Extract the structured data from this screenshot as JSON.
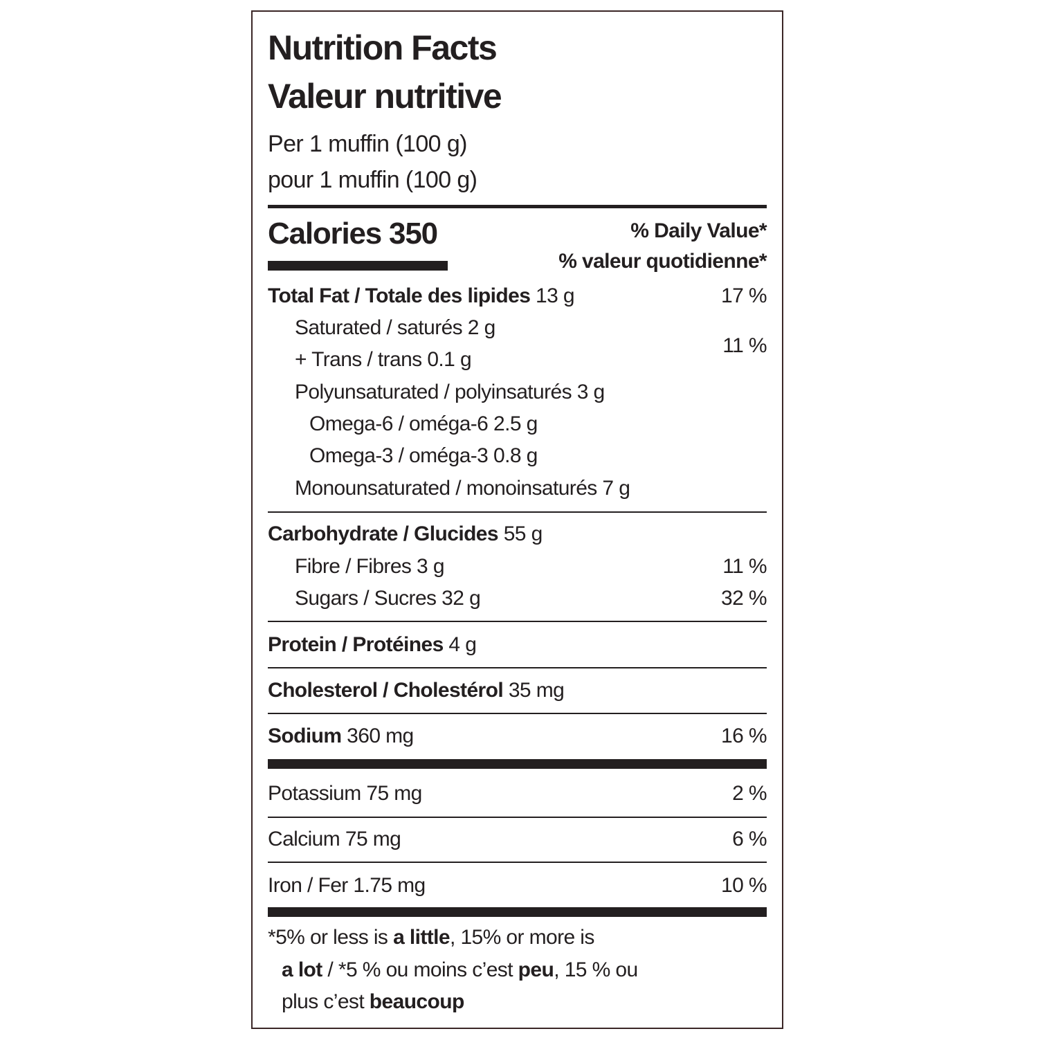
{
  "header": {
    "title_en": "Nutrition Facts",
    "title_fr": "Valeur nutritive",
    "serving_en": "Per 1 muffin (100 g)",
    "serving_fr": "pour 1 muffin (100 g)"
  },
  "calories": {
    "label": "Calories 350",
    "daily_value_en": "% Daily Value*",
    "daily_value_fr": "% valeur quotidienne*"
  },
  "fat": {
    "name": "Total Fat / Totale des lipides",
    "amount": "13 g",
    "dv": "17 %",
    "saturated_trans": {
      "lines": [
        "Saturated / saturés 2 g",
        "+ Trans / trans 0.1 g"
      ],
      "dv": "11 %"
    },
    "polyunsaturated": {
      "text": "Polyunsaturated / polyinsaturés 3 g",
      "omega6": "Omega-6 / oméga-6 2.5 g",
      "omega3": "Omega-3 / oméga-3 0.8 g"
    },
    "monounsaturated": "Monounsaturated / monoinsaturés 7 g"
  },
  "carbohydrate": {
    "name": "Carbohydrate / Glucides",
    "amount": "55 g",
    "fibre": {
      "text": "Fibre / Fibres 3 g",
      "dv": "11 %"
    },
    "sugars": {
      "text": "Sugars / Sucres 32 g",
      "dv": "32 %"
    }
  },
  "protein": {
    "name": "Protein / Protéines",
    "amount": "4 g"
  },
  "cholesterol": {
    "name": "Cholesterol / Cholestérol",
    "amount": "35 mg"
  },
  "sodium": {
    "name": "Sodium",
    "amount": "360 mg",
    "dv": "16 %"
  },
  "minerals": [
    {
      "text": "Potassium 75 mg",
      "dv": "2 %"
    },
    {
      "text": "Calcium 75 mg",
      "dv": "6 %"
    },
    {
      "text": "Iron / Fer 1.75 mg",
      "dv": "10 %"
    }
  ],
  "footnote": {
    "lines": [
      [
        {
          "text": "*5% or less is "
        },
        {
          "text": "a little",
          "bold": true
        },
        {
          "text": ", 15% or more is"
        }
      ],
      [
        {
          "text": "a lot",
          "bold": true
        },
        {
          "text": " / *5 % ou moins c’est "
        },
        {
          "text": "peu",
          "bold": true
        },
        {
          "text": ", 15 % ou"
        }
      ],
      [
        {
          "text": "plus c’est "
        },
        {
          "text": "beaucoup",
          "bold": true
        }
      ]
    ]
  }
}
